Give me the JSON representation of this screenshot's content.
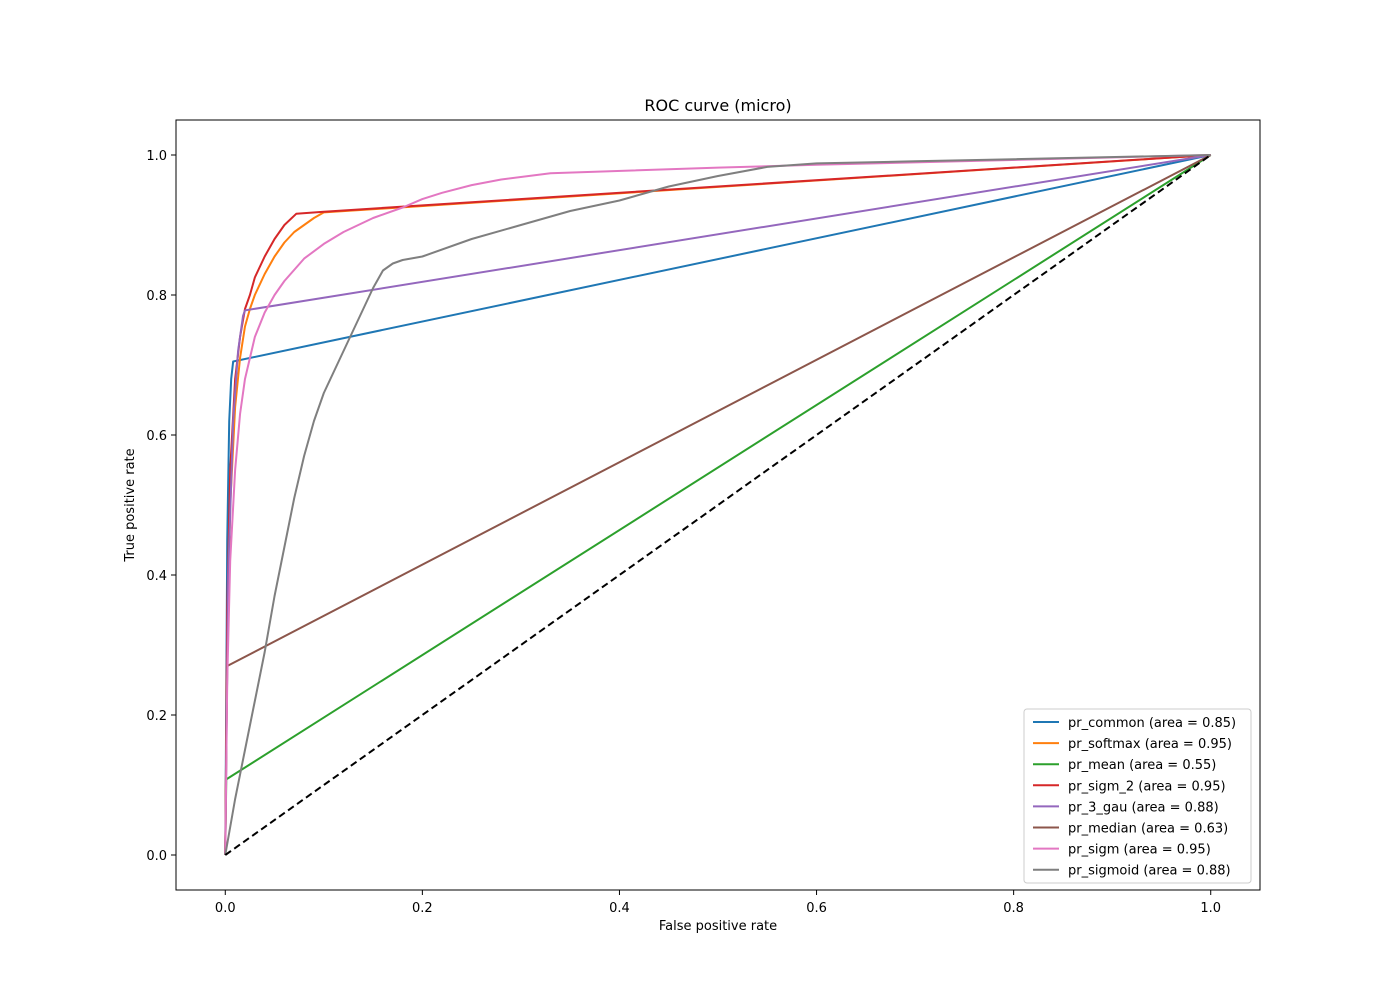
{
  "chart_data": {
    "type": "line",
    "title": "ROC curve (micro)",
    "xlabel": "False positive rate",
    "ylabel": "True positive rate",
    "xlim": [
      -0.05,
      1.05
    ],
    "ylim": [
      -0.05,
      1.05
    ],
    "xticks": [
      0.0,
      0.2,
      0.4,
      0.6,
      0.8,
      1.0
    ],
    "xtick_labels": [
      "0.0",
      "0.2",
      "0.4",
      "0.6",
      "0.8",
      "1.0"
    ],
    "yticks": [
      0.0,
      0.2,
      0.4,
      0.6,
      0.8,
      1.0
    ],
    "ytick_labels": [
      "0.0",
      "0.2",
      "0.4",
      "0.6",
      "0.8",
      "1.0"
    ],
    "grid": false,
    "legend_position": "lower right",
    "diagonal": {
      "x": [
        0,
        1
      ],
      "y": [
        0,
        1
      ],
      "color": "#000000",
      "style": "dashed"
    },
    "series": [
      {
        "name": "pr_common (area = 0.85)",
        "color": "#1f77b4",
        "x": [
          0,
          0.002,
          0.004,
          0.006,
          0.008,
          1.0
        ],
        "y": [
          0,
          0.45,
          0.62,
          0.68,
          0.705,
          1.0
        ]
      },
      {
        "name": "pr_softmax (area = 0.95)",
        "color": "#ff7f0e",
        "x": [
          0,
          0.002,
          0.005,
          0.01,
          0.015,
          0.02,
          0.025,
          0.03,
          0.04,
          0.05,
          0.06,
          0.07,
          0.08,
          0.09,
          0.1,
          1.0
        ],
        "y": [
          0,
          0.3,
          0.5,
          0.64,
          0.71,
          0.755,
          0.78,
          0.8,
          0.83,
          0.855,
          0.875,
          0.89,
          0.9,
          0.91,
          0.918,
          1.0
        ]
      },
      {
        "name": "pr_mean (area = 0.55)",
        "color": "#2ca02c",
        "x": [
          0,
          0.001,
          1.0
        ],
        "y": [
          0,
          0.108,
          1.0
        ]
      },
      {
        "name": "pr_sigm_2 (area = 0.95)",
        "color": "#d62728",
        "x": [
          0,
          0.002,
          0.005,
          0.01,
          0.015,
          0.02,
          0.025,
          0.03,
          0.04,
          0.05,
          0.06,
          0.072,
          0.1,
          1.0
        ],
        "y": [
          0,
          0.35,
          0.55,
          0.68,
          0.74,
          0.78,
          0.8,
          0.825,
          0.855,
          0.88,
          0.9,
          0.916,
          0.919,
          1.0
        ]
      },
      {
        "name": "pr_3_gau (area = 0.88)",
        "color": "#9467bd",
        "x": [
          0,
          0.003,
          0.008,
          0.013,
          0.018,
          0.02,
          1.0
        ],
        "y": [
          0,
          0.4,
          0.62,
          0.72,
          0.77,
          0.778,
          1.0
        ]
      },
      {
        "name": "pr_median (area = 0.63)",
        "color": "#8c564b",
        "x": [
          0,
          0.001,
          0.002,
          1.0
        ],
        "y": [
          0,
          0.15,
          0.27,
          1.0
        ]
      },
      {
        "name": "pr_sigm (area = 0.95)",
        "color": "#e377c2",
        "x": [
          0,
          0.002,
          0.005,
          0.01,
          0.015,
          0.02,
          0.03,
          0.04,
          0.05,
          0.06,
          0.08,
          0.1,
          0.12,
          0.15,
          0.18,
          0.2,
          0.22,
          0.25,
          0.28,
          0.33,
          0.5,
          0.6,
          1.0
        ],
        "y": [
          0,
          0.25,
          0.42,
          0.55,
          0.63,
          0.68,
          0.74,
          0.775,
          0.8,
          0.82,
          0.852,
          0.873,
          0.89,
          0.91,
          0.925,
          0.937,
          0.946,
          0.957,
          0.965,
          0.974,
          0.982,
          0.986,
          1.0
        ]
      },
      {
        "name": "pr_sigmoid (area = 0.88)",
        "color": "#7f7f7f",
        "x": [
          0,
          0.01,
          0.02,
          0.03,
          0.04,
          0.05,
          0.06,
          0.07,
          0.08,
          0.09,
          0.1,
          0.11,
          0.12,
          0.13,
          0.14,
          0.15,
          0.16,
          0.17,
          0.18,
          0.2,
          0.25,
          0.3,
          0.35,
          0.4,
          0.45,
          0.5,
          0.55,
          0.6,
          0.7,
          0.8,
          1.0
        ],
        "y": [
          0,
          0.08,
          0.15,
          0.22,
          0.29,
          0.37,
          0.44,
          0.51,
          0.57,
          0.62,
          0.66,
          0.69,
          0.72,
          0.75,
          0.78,
          0.81,
          0.835,
          0.845,
          0.85,
          0.855,
          0.88,
          0.9,
          0.92,
          0.935,
          0.955,
          0.97,
          0.983,
          0.988,
          0.991,
          0.994,
          1.0
        ]
      }
    ]
  }
}
